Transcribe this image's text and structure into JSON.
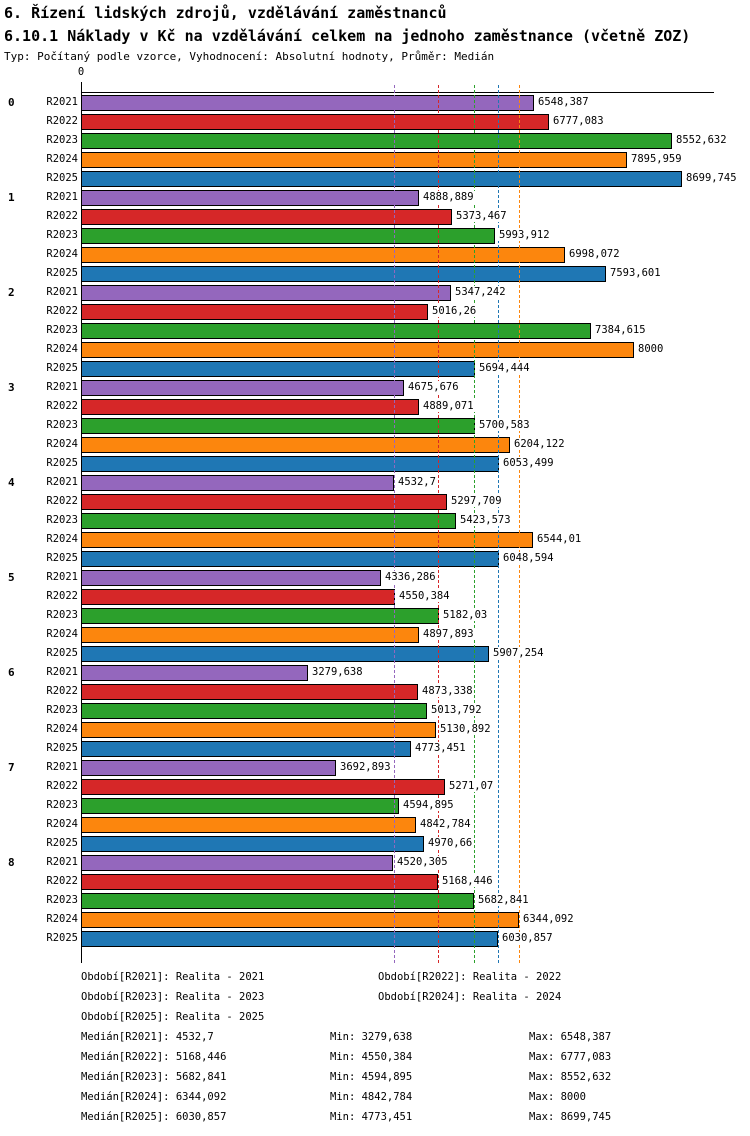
{
  "header": {
    "title": "6. Řízení lidských zdrojů, vzdělávání zaměstnanců",
    "subtitle": "6.10.1 Náklady v Kč na vzdělávání celkem na jednoho zaměstnance (včetně ZOZ)",
    "meta": "Typ: Počítaný podle vzorce, Vyhodnocení: Absolutní hodnoty, Průměr: Medián"
  },
  "chart_data": {
    "type": "bar",
    "orientation": "horizontal",
    "title": "6.10.1 Náklady v Kč na vzdělávání celkem na jednoho zaměstnance (včetně ZOZ)",
    "xlabel": "",
    "ylabel": "",
    "xlim": [
      0,
      9160
    ],
    "axis_zero_label": "0",
    "grid": false,
    "categories": [
      "0",
      "1",
      "2",
      "3",
      "4",
      "5",
      "6",
      "7",
      "8"
    ],
    "series_labels": [
      "R2021",
      "R2022",
      "R2023",
      "R2024",
      "R2025"
    ],
    "series_colors": {
      "R2021": "#9467bd",
      "R2022": "#d62728",
      "R2023": "#2ca02c",
      "R2024": "#fc860d",
      "R2025": "#1f77b4"
    },
    "groups": [
      {
        "label": "0",
        "values": [
          6548.387,
          6777.083,
          8552.632,
          7895.959,
          8699.745
        ],
        "displays": [
          "6548,387",
          "6777,083",
          "8552,632",
          "7895,959",
          "8699,745"
        ]
      },
      {
        "label": "1",
        "values": [
          4888.889,
          5373.467,
          5993.912,
          6998.072,
          7593.601
        ],
        "displays": [
          "4888,889",
          "5373,467",
          "5993,912",
          "6998,072",
          "7593,601"
        ]
      },
      {
        "label": "2",
        "values": [
          5347.242,
          5016.26,
          7384.615,
          8000,
          5694.444
        ],
        "displays": [
          "5347,242",
          "5016,26",
          "7384,615",
          "8000",
          "5694,444"
        ]
      },
      {
        "label": "3",
        "values": [
          4675.676,
          4889.071,
          5700.583,
          6204.122,
          6053.499
        ],
        "displays": [
          "4675,676",
          "4889,071",
          "5700,583",
          "6204,122",
          "6053,499"
        ]
      },
      {
        "label": "4",
        "values": [
          4532.7,
          5297.709,
          5423.573,
          6544.01,
          6048.594
        ],
        "displays": [
          "4532,7",
          "5297,709",
          "5423,573",
          "6544,01",
          "6048,594"
        ]
      },
      {
        "label": "5",
        "values": [
          4336.286,
          4550.384,
          5182.03,
          4897.893,
          5907.254
        ],
        "displays": [
          "4336,286",
          "4550,384",
          "5182,03",
          "4897,893",
          "5907,254"
        ]
      },
      {
        "label": "6",
        "values": [
          3279.638,
          4873.338,
          5013.792,
          5130.892,
          4773.451
        ],
        "displays": [
          "3279,638",
          "4873,338",
          "5013,792",
          "5130,892",
          "4773,451"
        ]
      },
      {
        "label": "7",
        "values": [
          3692.893,
          5271.07,
          4594.895,
          4842.784,
          4970.66
        ],
        "displays": [
          "3692,893",
          "5271,07",
          "4594,895",
          "4842,784",
          "4970,66"
        ]
      },
      {
        "label": "8",
        "values": [
          4520.305,
          5168.446,
          5682.841,
          6344.092,
          6030.857
        ],
        "displays": [
          "4520,305",
          "5168,446",
          "5682,841",
          "6344,092",
          "6030,857"
        ]
      }
    ],
    "medians": {
      "R2021": 4532.7,
      "R2022": 5168.446,
      "R2023": 5682.841,
      "R2024": 6344.092,
      "R2025": 6030.857
    },
    "legend_position": "bottom"
  },
  "legend": {
    "rows": [
      [
        "Období[R2021]: Realita - 2021",
        "Období[R2022]: Realita - 2022"
      ],
      [
        "Období[R2023]: Realita - 2023",
        "Období[R2024]: Realita - 2024"
      ],
      [
        "Období[R2025]: Realita - 2025",
        ""
      ]
    ]
  },
  "stats": {
    "rows": [
      [
        "Medián[R2021]: 4532,7",
        "Min: 3279,638",
        "Max: 6548,387"
      ],
      [
        "Medián[R2022]: 5168,446",
        "Min: 4550,384",
        "Max: 6777,083"
      ],
      [
        "Medián[R2023]: 5682,841",
        "Min: 4594,895",
        "Max: 8552,632"
      ],
      [
        "Medián[R2024]: 6344,092",
        "Min: 4842,784",
        "Max: 8000"
      ],
      [
        "Medián[R2025]: 6030,857",
        "Min: 4773,451",
        "Max: 8699,745"
      ]
    ]
  }
}
